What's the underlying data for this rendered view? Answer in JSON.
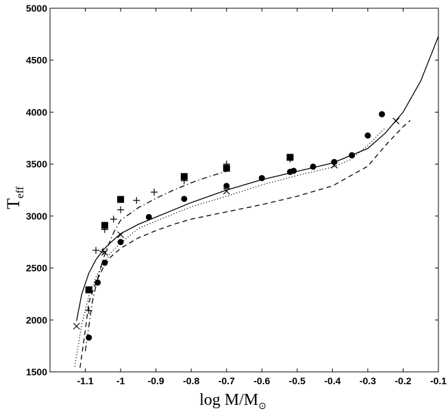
{
  "chart_data": {
    "type": "line",
    "title": "",
    "xlabel": "log M/M",
    "xlabel_subscript": "⊙",
    "ylabel": "T",
    "ylabel_subscript": "eff",
    "xlim": [
      -1.2,
      -0.1
    ],
    "ylim": [
      1500,
      5000
    ],
    "xticks": [
      -1.1,
      -1.0,
      -0.9,
      -0.8,
      -0.7,
      -0.6,
      -0.5,
      -0.4,
      -0.3,
      -0.2,
      -0.1
    ],
    "xtick_labels": [
      "-1.1",
      "-1",
      "-0.9",
      "-0.8",
      "-0.7",
      "-0.6",
      "-0.5",
      "-0.4",
      "-0.3",
      "-0.2",
      "-0.1"
    ],
    "yticks": [
      1500,
      2000,
      2500,
      3000,
      3500,
      4000,
      4500,
      5000
    ],
    "ytick_labels": [
      "1500",
      "2000",
      "2500",
      "3000",
      "3500",
      "4000",
      "4500",
      "5000"
    ],
    "grid": false,
    "legend": "none",
    "lines": [
      {
        "name": "solid",
        "dash": "solid",
        "x": [
          -1.125,
          -1.11,
          -1.09,
          -1.07,
          -1.05,
          -1.03,
          -1.0,
          -0.95,
          -0.9,
          -0.85,
          -0.8,
          -0.75,
          -0.7,
          -0.6,
          -0.5,
          -0.4,
          -0.3,
          -0.25,
          -0.2,
          -0.15,
          -0.1
        ],
        "y": [
          1990,
          2250,
          2450,
          2580,
          2670,
          2740,
          2830,
          2920,
          2990,
          3060,
          3130,
          3190,
          3250,
          3350,
          3430,
          3510,
          3650,
          3800,
          4000,
          4300,
          4730
        ]
      },
      {
        "name": "dotted",
        "dash": "dotted",
        "x": [
          -1.13,
          -1.11,
          -1.09,
          -1.07,
          -1.05,
          -1.03,
          -1.0,
          -0.95,
          -0.9,
          -0.85,
          -0.8,
          -0.75,
          -0.7,
          -0.6,
          -0.5,
          -0.4,
          -0.35,
          -0.3,
          -0.25
        ],
        "y": [
          1550,
          1960,
          2230,
          2410,
          2530,
          2640,
          2740,
          2880,
          2950,
          3020,
          3090,
          3140,
          3190,
          3300,
          3390,
          3470,
          3540,
          3680,
          3850
        ]
      },
      {
        "name": "dashed",
        "dash": "dashed",
        "x": [
          -1.115,
          -1.1,
          -1.09,
          -1.07,
          -1.05,
          -1.03,
          -1.0,
          -0.95,
          -0.9,
          -0.85,
          -0.8,
          -0.7,
          -0.6,
          -0.5,
          -0.4,
          -0.3,
          -0.25,
          -0.2,
          -0.18
        ],
        "y": [
          1540,
          1900,
          2170,
          2360,
          2500,
          2600,
          2690,
          2790,
          2860,
          2920,
          2970,
          3040,
          3110,
          3190,
          3290,
          3480,
          3680,
          3860,
          3920
        ]
      },
      {
        "name": "dash-dot",
        "dash": "dashdot",
        "x": [
          -1.1,
          -1.08,
          -1.06,
          -1.04,
          -1.02,
          -1.0,
          -0.95,
          -0.9,
          -0.85,
          -0.8,
          -0.75,
          -0.7
        ],
        "y": [
          1700,
          2180,
          2470,
          2680,
          2840,
          2960,
          3080,
          3170,
          3250,
          3320,
          3380,
          3430
        ]
      }
    ],
    "scatter": [
      {
        "name": "filled circles",
        "marker": "circle",
        "points": [
          [
            -1.09,
            1830
          ],
          [
            -1.065,
            2360
          ],
          [
            -1.045,
            2550
          ],
          [
            -1.0,
            2750
          ],
          [
            -0.92,
            2990
          ],
          [
            -0.82,
            3165
          ],
          [
            -0.7,
            3290
          ],
          [
            -0.6,
            3365
          ],
          [
            -0.52,
            3425
          ],
          [
            -0.51,
            3435
          ],
          [
            -0.455,
            3475
          ],
          [
            -0.395,
            3520
          ],
          [
            -0.345,
            3585
          ],
          [
            -0.3,
            3775
          ],
          [
            -0.26,
            3980
          ]
        ]
      },
      {
        "name": "filled squares",
        "marker": "square",
        "points": [
          [
            -1.09,
            2290
          ],
          [
            -1.045,
            2910
          ],
          [
            -1.0,
            3160
          ],
          [
            -0.82,
            3380
          ],
          [
            -0.7,
            3460
          ],
          [
            -0.52,
            3565
          ]
        ]
      },
      {
        "name": "plus",
        "marker": "plus",
        "points": [
          [
            -1.09,
            2090
          ],
          [
            -1.07,
            2670
          ],
          [
            -1.05,
            2660
          ],
          [
            -1.045,
            2870
          ],
          [
            -1.02,
            2970
          ],
          [
            -1.0,
            3060
          ],
          [
            -0.955,
            3150
          ],
          [
            -0.905,
            3230
          ],
          [
            -0.82,
            3340
          ],
          [
            -0.7,
            3500
          ],
          [
            -0.52,
            3550
          ]
        ]
      },
      {
        "name": "cross",
        "marker": "x",
        "points": [
          [
            -1.125,
            1940
          ],
          [
            -1.045,
            2650
          ],
          [
            -1.0,
            2820
          ],
          [
            -0.7,
            3240
          ],
          [
            -0.395,
            3490
          ],
          [
            -0.22,
            3915
          ]
        ]
      }
    ]
  }
}
